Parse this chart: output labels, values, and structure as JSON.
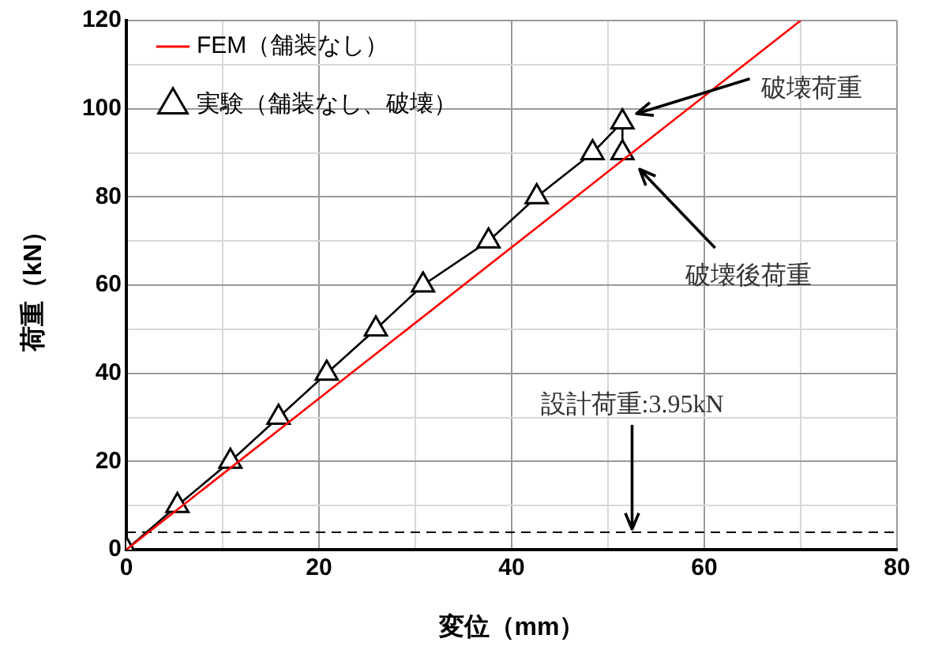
{
  "chart_data": {
    "type": "line",
    "xlabel": "変位（mm）",
    "ylabel": "荷重（kN）",
    "xlim": [
      0,
      80
    ],
    "xticks": [
      0,
      {
        "value": 10,
        "label": null
      },
      20,
      {
        "value": 30,
        "label": null
      },
      40,
      {
        "value": 50,
        "label": null
      },
      60,
      {
        "value": 70,
        "label": null
      },
      80
    ],
    "ylim": [
      0,
      120
    ],
    "yticks": [
      0,
      {
        "value": 10,
        "label": null
      },
      20,
      {
        "value": 30,
        "label": null
      },
      40,
      {
        "value": 50,
        "label": null
      },
      60,
      {
        "value": 70,
        "label": null
      },
      80,
      {
        "value": 90,
        "label": null
      },
      100,
      {
        "value": 110,
        "label": null
      },
      120
    ],
    "grid": true,
    "legend": "top left",
    "series": [
      {
        "name": "FEM（舗装なし）",
        "color": "#ff0000",
        "x": [
          0,
          70
        ],
        "values": [
          0,
          120
        ],
        "marker": "none",
        "line_style": "solid"
      },
      {
        "name": "実験（舗装なし、破壊）",
        "color": "#000000",
        "x": [
          0,
          5.3,
          10.8,
          15.8,
          20.8,
          25.9,
          30.8,
          37.6,
          42.6,
          48.4,
          51.5,
          51.5
        ],
        "values": [
          0,
          10,
          20,
          30,
          40,
          50,
          60,
          70,
          80,
          90,
          97,
          90
        ],
        "marker": "triangle",
        "line_style": "solid"
      }
    ],
    "ref_lines": [
      {
        "axis": "y",
        "value": 3.95,
        "label": "設計荷重:3.95kN",
        "color": "#000000",
        "line_style": "dashed"
      }
    ],
    "annotations": [
      "破壊荷重",
      "破壊後荷重"
    ]
  }
}
